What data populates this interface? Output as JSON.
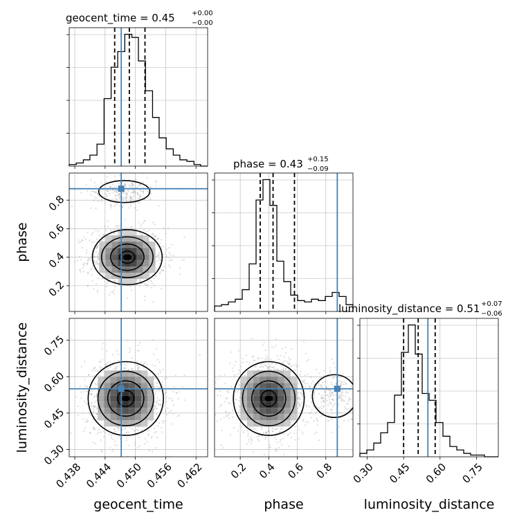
{
  "chart_data": {
    "type": "corner",
    "parameters": [
      "geocent_time",
      "phase",
      "luminosity_distance"
    ],
    "truths": {
      "geocent_time": 0.4472,
      "phase": 0.88,
      "luminosity_distance": 0.55
    },
    "truth_color": "#4682b4",
    "axis_ranges": {
      "geocent_time": [
        0.4369,
        0.4643
      ],
      "phase": [
        0.02,
        0.99
      ],
      "luminosity_distance": [
        0.27,
        0.84
      ]
    },
    "ticks": {
      "geocent_time": {
        "values": [
          0.438,
          0.444,
          0.45,
          0.456,
          0.462
        ],
        "labels": [
          "0.438",
          "0.444",
          "0.450",
          "0.456",
          "0.462"
        ]
      },
      "phase": {
        "values": [
          0.2,
          0.4,
          0.6,
          0.8
        ],
        "labels": [
          "0.2",
          "0.4",
          "0.6",
          "0.8"
        ]
      },
      "luminosity_distance": {
        "values": [
          0.3,
          0.45,
          0.6,
          0.75
        ],
        "labels": [
          "0.30",
          "0.45",
          "0.60",
          "0.75"
        ]
      }
    },
    "titles": [
      {
        "param": "geocent_time",
        "label": "geocent_time = 0.45",
        "plus": "+0.00",
        "minus": "−0.00"
      },
      {
        "param": "phase",
        "label": "phase = 0.43",
        "plus": "+0.15",
        "minus": "−0.09"
      },
      {
        "param": "luminosity_distance",
        "label": "luminosity_distance = 0.51",
        "plus": "+0.07",
        "minus": "−0.06"
      }
    ],
    "histograms": {
      "geocent_time": {
        "edges": [
          0.4369,
          0.4383,
          0.4397,
          0.441,
          0.4424,
          0.4438,
          0.4452,
          0.4465,
          0.4479,
          0.4493,
          0.4506,
          0.452,
          0.4534,
          0.4547,
          0.4561,
          0.4575,
          0.4588,
          0.4602,
          0.4616,
          0.4629,
          0.4643
        ],
        "counts": [
          1,
          2,
          4,
          7,
          14,
          43,
          63,
          73,
          84,
          82,
          67,
          48,
          31,
          18,
          11,
          7,
          4,
          3,
          1,
          0
        ],
        "quantiles": [
          0.4459,
          0.4488,
          0.4519
        ]
      },
      "phase": {
        "edges": [
          0.02,
          0.0685,
          0.117,
          0.1655,
          0.214,
          0.2625,
          0.311,
          0.3595,
          0.408,
          0.4565,
          0.505,
          0.5535,
          0.602,
          0.6505,
          0.699,
          0.7475,
          0.796,
          0.8445,
          0.893,
          0.9415,
          0.99
        ],
        "counts": [
          4,
          5,
          7,
          9,
          16,
          35,
          82,
          97,
          78,
          37,
          22,
          12,
          8,
          7,
          9,
          8,
          11,
          14,
          11,
          5
        ],
        "quantiles": [
          0.34,
          0.43,
          0.58
        ]
      },
      "luminosity_distance": {
        "edges": [
          0.27,
          0.2985,
          0.327,
          0.3555,
          0.384,
          0.4125,
          0.441,
          0.4695,
          0.498,
          0.5265,
          0.555,
          0.5835,
          0.612,
          0.6405,
          0.669,
          0.6975,
          0.726,
          0.7545,
          0.783,
          0.8115,
          0.84
        ],
        "counts": [
          2,
          4,
          8,
          14,
          20,
          36,
          61,
          77,
          60,
          37,
          33,
          20,
          12,
          6,
          4,
          2,
          1,
          1,
          0,
          0
        ],
        "quantiles": [
          0.45,
          0.51,
          0.58
        ]
      }
    },
    "joint": [
      {
        "x": "geocent_time",
        "y": "phase",
        "center": [
          0.4484,
          0.4
        ],
        "spread": [
          0.0025,
          0.07
        ],
        "tilt": 0.05,
        "secondary_mode": [
          0.4478,
          0.86
        ],
        "secondary_spread": [
          0.0023,
          0.035
        ]
      },
      {
        "x": "geocent_time",
        "y": "luminosity_distance",
        "center": [
          0.4481,
          0.51
        ],
        "spread": [
          0.0027,
          0.055
        ],
        "tilt": 0.0
      },
      {
        "x": "phase",
        "y": "luminosity_distance",
        "center": [
          0.4,
          0.51
        ],
        "spread": [
          0.09,
          0.055
        ],
        "tilt": 0.0,
        "secondary_mode": [
          0.86,
          0.52
        ],
        "secondary_spread": [
          0.07,
          0.04
        ]
      }
    ],
    "grid": true
  }
}
